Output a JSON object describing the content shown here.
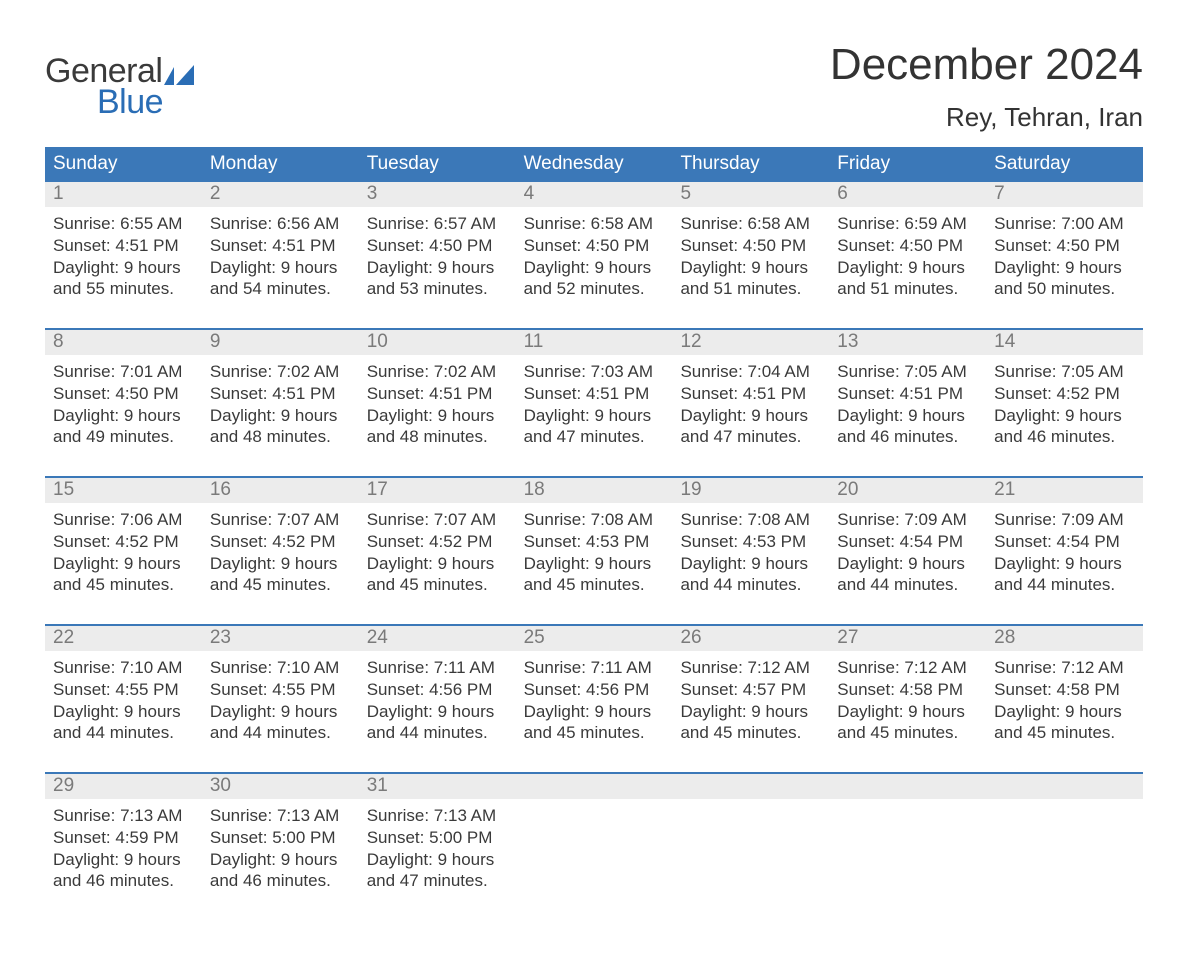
{
  "brand": {
    "general": "General",
    "blue": "Blue",
    "shape_color": "#2a6db5"
  },
  "title": "December 2024",
  "location": "Rey, Tehran, Iran",
  "colors": {
    "header_bg": "#3b78b8",
    "header_text": "#ffffff",
    "daynum_bg": "#ececec",
    "daynum_text": "#7a7a7a",
    "body_text": "#3a3a3a",
    "week_sep": "#3b78b8",
    "background": "#ffffff"
  },
  "typography": {
    "title_fontsize": 44,
    "location_fontsize": 26,
    "header_fontsize": 19,
    "cell_fontsize": 17
  },
  "day_headers": [
    "Sunday",
    "Monday",
    "Tuesday",
    "Wednesday",
    "Thursday",
    "Friday",
    "Saturday"
  ],
  "weeks": [
    [
      {
        "n": "1",
        "sunrise": "6:55 AM",
        "sunset": "4:51 PM",
        "daylight": "9 hours and 55 minutes."
      },
      {
        "n": "2",
        "sunrise": "6:56 AM",
        "sunset": "4:51 PM",
        "daylight": "9 hours and 54 minutes."
      },
      {
        "n": "3",
        "sunrise": "6:57 AM",
        "sunset": "4:50 PM",
        "daylight": "9 hours and 53 minutes."
      },
      {
        "n": "4",
        "sunrise": "6:58 AM",
        "sunset": "4:50 PM",
        "daylight": "9 hours and 52 minutes."
      },
      {
        "n": "5",
        "sunrise": "6:58 AM",
        "sunset": "4:50 PM",
        "daylight": "9 hours and 51 minutes."
      },
      {
        "n": "6",
        "sunrise": "6:59 AM",
        "sunset": "4:50 PM",
        "daylight": "9 hours and 51 minutes."
      },
      {
        "n": "7",
        "sunrise": "7:00 AM",
        "sunset": "4:50 PM",
        "daylight": "9 hours and 50 minutes."
      }
    ],
    [
      {
        "n": "8",
        "sunrise": "7:01 AM",
        "sunset": "4:50 PM",
        "daylight": "9 hours and 49 minutes."
      },
      {
        "n": "9",
        "sunrise": "7:02 AM",
        "sunset": "4:51 PM",
        "daylight": "9 hours and 48 minutes."
      },
      {
        "n": "10",
        "sunrise": "7:02 AM",
        "sunset": "4:51 PM",
        "daylight": "9 hours and 48 minutes."
      },
      {
        "n": "11",
        "sunrise": "7:03 AM",
        "sunset": "4:51 PM",
        "daylight": "9 hours and 47 minutes."
      },
      {
        "n": "12",
        "sunrise": "7:04 AM",
        "sunset": "4:51 PM",
        "daylight": "9 hours and 47 minutes."
      },
      {
        "n": "13",
        "sunrise": "7:05 AM",
        "sunset": "4:51 PM",
        "daylight": "9 hours and 46 minutes."
      },
      {
        "n": "14",
        "sunrise": "7:05 AM",
        "sunset": "4:52 PM",
        "daylight": "9 hours and 46 minutes."
      }
    ],
    [
      {
        "n": "15",
        "sunrise": "7:06 AM",
        "sunset": "4:52 PM",
        "daylight": "9 hours and 45 minutes."
      },
      {
        "n": "16",
        "sunrise": "7:07 AM",
        "sunset": "4:52 PM",
        "daylight": "9 hours and 45 minutes."
      },
      {
        "n": "17",
        "sunrise": "7:07 AM",
        "sunset": "4:52 PM",
        "daylight": "9 hours and 45 minutes."
      },
      {
        "n": "18",
        "sunrise": "7:08 AM",
        "sunset": "4:53 PM",
        "daylight": "9 hours and 45 minutes."
      },
      {
        "n": "19",
        "sunrise": "7:08 AM",
        "sunset": "4:53 PM",
        "daylight": "9 hours and 44 minutes."
      },
      {
        "n": "20",
        "sunrise": "7:09 AM",
        "sunset": "4:54 PM",
        "daylight": "9 hours and 44 minutes."
      },
      {
        "n": "21",
        "sunrise": "7:09 AM",
        "sunset": "4:54 PM",
        "daylight": "9 hours and 44 minutes."
      }
    ],
    [
      {
        "n": "22",
        "sunrise": "7:10 AM",
        "sunset": "4:55 PM",
        "daylight": "9 hours and 44 minutes."
      },
      {
        "n": "23",
        "sunrise": "7:10 AM",
        "sunset": "4:55 PM",
        "daylight": "9 hours and 44 minutes."
      },
      {
        "n": "24",
        "sunrise": "7:11 AM",
        "sunset": "4:56 PM",
        "daylight": "9 hours and 44 minutes."
      },
      {
        "n": "25",
        "sunrise": "7:11 AM",
        "sunset": "4:56 PM",
        "daylight": "9 hours and 45 minutes."
      },
      {
        "n": "26",
        "sunrise": "7:12 AM",
        "sunset": "4:57 PM",
        "daylight": "9 hours and 45 minutes."
      },
      {
        "n": "27",
        "sunrise": "7:12 AM",
        "sunset": "4:58 PM",
        "daylight": "9 hours and 45 minutes."
      },
      {
        "n": "28",
        "sunrise": "7:12 AM",
        "sunset": "4:58 PM",
        "daylight": "9 hours and 45 minutes."
      }
    ],
    [
      {
        "n": "29",
        "sunrise": "7:13 AM",
        "sunset": "4:59 PM",
        "daylight": "9 hours and 46 minutes."
      },
      {
        "n": "30",
        "sunrise": "7:13 AM",
        "sunset": "5:00 PM",
        "daylight": "9 hours and 46 minutes."
      },
      {
        "n": "31",
        "sunrise": "7:13 AM",
        "sunset": "5:00 PM",
        "daylight": "9 hours and 47 minutes."
      },
      null,
      null,
      null,
      null
    ]
  ],
  "labels": {
    "sunrise": "Sunrise:",
    "sunset": "Sunset:",
    "daylight": "Daylight:"
  }
}
